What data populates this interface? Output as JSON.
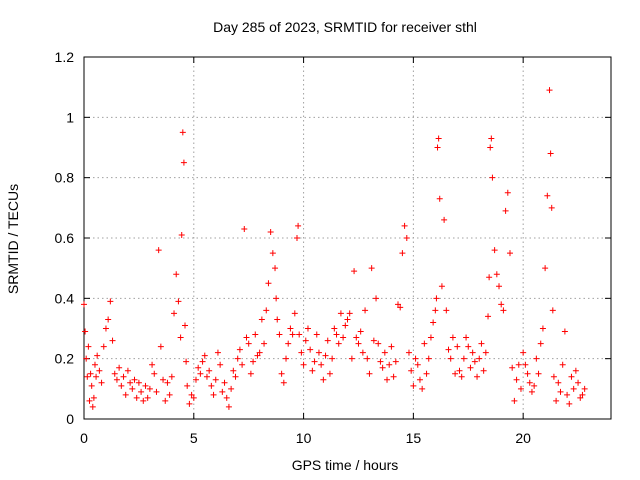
{
  "chart_data": {
    "type": "scatter",
    "title": "Day 285 of 2023, SRMTID for receiver sthl",
    "xlabel": "GPS time / hours",
    "ylabel": "SRMTID / TECUs",
    "xlim": [
      0,
      24
    ],
    "ylim": [
      0,
      1.2
    ],
    "xticks": [
      0,
      5,
      10,
      15,
      20
    ],
    "xtick_labels": [
      "0",
      "5",
      "10",
      "15",
      "20"
    ],
    "yticks": [
      0,
      0.2,
      0.4,
      0.6,
      0.8,
      1,
      1.2
    ],
    "ytick_labels": [
      "0",
      "0.2",
      "0.4",
      "0.6",
      "0.8",
      "1",
      "1.2"
    ],
    "grid": true,
    "marker": "+",
    "series": [
      {
        "name": "SRMTID",
        "color": "#ff0000",
        "x": [
          0.0,
          0.05,
          0.1,
          0.15,
          0.2,
          0.25,
          0.3,
          0.35,
          0.4,
          0.45,
          0.5,
          0.55,
          0.6,
          0.7,
          0.8,
          0.9,
          1.0,
          1.1,
          1.2,
          1.3,
          1.4,
          1.5,
          1.6,
          1.7,
          1.8,
          1.9,
          2.0,
          2.1,
          2.2,
          2.3,
          2.4,
          2.5,
          2.6,
          2.7,
          2.8,
          2.9,
          3.0,
          3.1,
          3.2,
          3.3,
          3.4,
          3.5,
          3.6,
          3.7,
          3.8,
          3.9,
          4.0,
          4.1,
          4.2,
          4.3,
          4.4,
          4.45,
          4.5,
          4.55,
          4.6,
          4.65,
          4.7,
          4.8,
          4.9,
          5.0,
          5.1,
          5.2,
          5.3,
          5.4,
          5.5,
          5.6,
          5.7,
          5.8,
          5.9,
          6.0,
          6.1,
          6.2,
          6.3,
          6.4,
          6.5,
          6.6,
          6.7,
          6.8,
          6.9,
          7.0,
          7.1,
          7.2,
          7.3,
          7.4,
          7.5,
          7.6,
          7.7,
          7.8,
          7.9,
          8.0,
          8.1,
          8.2,
          8.3,
          8.4,
          8.5,
          8.6,
          8.7,
          8.75,
          8.8,
          8.9,
          9.0,
          9.1,
          9.2,
          9.3,
          9.4,
          9.5,
          9.6,
          9.7,
          9.75,
          9.8,
          9.9,
          10.0,
          10.1,
          10.2,
          10.3,
          10.4,
          10.5,
          10.6,
          10.7,
          10.8,
          10.9,
          11.0,
          11.1,
          11.2,
          11.3,
          11.4,
          11.5,
          11.6,
          11.7,
          11.8,
          11.9,
          12.0,
          12.1,
          12.2,
          12.3,
          12.4,
          12.5,
          12.6,
          12.7,
          12.8,
          12.9,
          13.0,
          13.1,
          13.2,
          13.3,
          13.4,
          13.5,
          13.6,
          13.7,
          13.8,
          13.9,
          14.0,
          14.1,
          14.2,
          14.3,
          14.4,
          14.5,
          14.6,
          14.7,
          14.8,
          14.9,
          15.0,
          15.1,
          15.2,
          15.3,
          15.4,
          15.5,
          15.6,
          15.7,
          15.8,
          15.9,
          16.0,
          16.05,
          16.1,
          16.15,
          16.2,
          16.3,
          16.4,
          16.5,
          16.6,
          16.7,
          16.8,
          16.9,
          17.0,
          17.1,
          17.2,
          17.3,
          17.4,
          17.5,
          17.6,
          17.7,
          17.8,
          17.9,
          18.0,
          18.1,
          18.2,
          18.3,
          18.4,
          18.45,
          18.5,
          18.55,
          18.6,
          18.7,
          18.8,
          18.9,
          19.0,
          19.1,
          19.2,
          19.3,
          19.4,
          19.5,
          19.6,
          19.7,
          19.8,
          19.9,
          20.0,
          20.1,
          20.2,
          20.3,
          20.4,
          20.5,
          20.6,
          20.7,
          20.8,
          20.9,
          21.0,
          21.1,
          21.2,
          21.25,
          21.3,
          21.35,
          21.4,
          21.5,
          21.6,
          21.7,
          21.8,
          21.9,
          22.0,
          22.1,
          22.2,
          22.3,
          22.4,
          22.5,
          22.6,
          22.7,
          22.8
        ],
        "y": [
          0.38,
          0.29,
          0.2,
          0.14,
          0.24,
          0.06,
          0.15,
          0.11,
          0.04,
          0.07,
          0.18,
          0.14,
          0.21,
          0.16,
          0.12,
          0.24,
          0.3,
          0.33,
          0.39,
          0.26,
          0.15,
          0.13,
          0.17,
          0.11,
          0.14,
          0.08,
          0.16,
          0.12,
          0.1,
          0.13,
          0.07,
          0.12,
          0.09,
          0.06,
          0.11,
          0.07,
          0.1,
          0.18,
          0.15,
          0.09,
          0.56,
          0.24,
          0.13,
          0.06,
          0.12,
          0.08,
          0.14,
          0.35,
          0.48,
          0.39,
          0.27,
          0.61,
          0.95,
          0.85,
          0.31,
          0.19,
          0.11,
          0.05,
          0.08,
          0.07,
          0.13,
          0.17,
          0.15,
          0.19,
          0.21,
          0.14,
          0.16,
          0.11,
          0.08,
          0.13,
          0.22,
          0.18,
          0.09,
          0.12,
          0.07,
          0.04,
          0.1,
          0.16,
          0.14,
          0.2,
          0.23,
          0.18,
          0.63,
          0.27,
          0.25,
          0.15,
          0.19,
          0.28,
          0.21,
          0.22,
          0.33,
          0.25,
          0.36,
          0.45,
          0.62,
          0.55,
          0.5,
          0.4,
          0.33,
          0.28,
          0.15,
          0.12,
          0.2,
          0.25,
          0.3,
          0.28,
          0.35,
          0.6,
          0.64,
          0.28,
          0.22,
          0.18,
          0.26,
          0.3,
          0.23,
          0.16,
          0.19,
          0.28,
          0.22,
          0.18,
          0.13,
          0.21,
          0.26,
          0.15,
          0.2,
          0.3,
          0.28,
          0.25,
          0.35,
          0.27,
          0.31,
          0.33,
          0.35,
          0.2,
          0.49,
          0.27,
          0.25,
          0.29,
          0.22,
          0.36,
          0.2,
          0.15,
          0.5,
          0.26,
          0.4,
          0.25,
          0.19,
          0.17,
          0.22,
          0.13,
          0.18,
          0.24,
          0.14,
          0.19,
          0.38,
          0.37,
          0.55,
          0.64,
          0.6,
          0.22,
          0.16,
          0.11,
          0.2,
          0.18,
          0.13,
          0.1,
          0.25,
          0.15,
          0.2,
          0.27,
          0.32,
          0.36,
          0.4,
          0.9,
          0.93,
          0.73,
          0.44,
          0.66,
          0.36,
          0.23,
          0.2,
          0.27,
          0.15,
          0.24,
          0.16,
          0.14,
          0.2,
          0.27,
          0.24,
          0.17,
          0.22,
          0.19,
          0.14,
          0.2,
          0.25,
          0.16,
          0.22,
          0.34,
          0.47,
          0.9,
          0.93,
          0.8,
          0.56,
          0.48,
          0.44,
          0.38,
          0.36,
          0.69,
          0.75,
          0.55,
          0.17,
          0.06,
          0.13,
          0.18,
          0.1,
          0.22,
          0.18,
          0.15,
          0.12,
          0.09,
          0.11,
          0.2,
          0.15,
          0.25,
          0.3,
          0.5,
          0.74,
          1.09,
          0.88,
          0.7,
          0.36,
          0.14,
          0.06,
          0.12,
          0.09,
          0.18,
          0.29,
          0.08,
          0.05,
          0.14,
          0.1,
          0.16,
          0.12,
          0.07,
          0.08,
          0.1
        ]
      }
    ]
  }
}
